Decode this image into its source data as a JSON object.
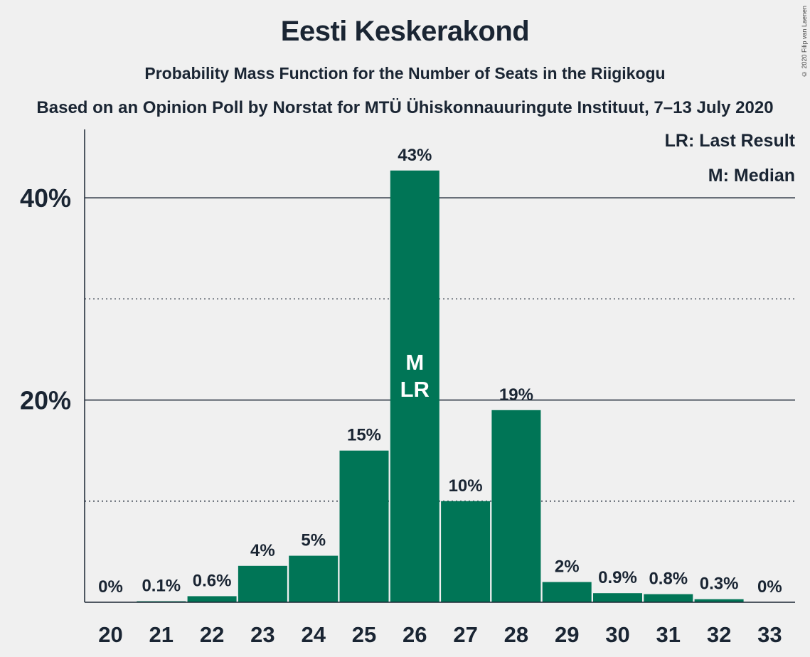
{
  "header": {
    "title": "Eesti Keskerakond",
    "subtitle": "Probability Mass Function for the Number of Seats in the Riigikogu",
    "subtitle2": "Based on an Opinion Poll by Norstat for MTÜ Ühiskonnauuringute Instituut, 7–13 July 2020",
    "copyright": "© 2020 Filip van Laenen"
  },
  "legend": {
    "last_result": "LR: Last Result",
    "median": "M: Median"
  },
  "colors": {
    "bar": "#007556",
    "text": "#1a2533",
    "background": "#f0f0f0"
  },
  "chart_data": {
    "type": "bar",
    "categories": [
      "20",
      "21",
      "22",
      "23",
      "24",
      "25",
      "26",
      "27",
      "28",
      "29",
      "30",
      "31",
      "32",
      "33"
    ],
    "values": [
      0,
      0.1,
      0.6,
      3.6,
      4.6,
      15.0,
      42.7,
      10.0,
      19.0,
      2.0,
      0.9,
      0.8,
      0.3,
      0
    ],
    "labels": [
      "0%",
      "0.1%",
      "0.6%",
      "4%",
      "5%",
      "15%",
      "43%",
      "10%",
      "19%",
      "2%",
      "0.9%",
      "0.8%",
      "0.3%",
      "0%"
    ],
    "ylim": [
      0,
      45
    ],
    "yticks": [
      {
        "value": 20,
        "label": "20%"
      },
      {
        "value": 40,
        "label": "40%"
      }
    ],
    "minor_gridlines": [
      10,
      30
    ],
    "median_category": "26",
    "last_result_category": "26",
    "median_marker": "M",
    "last_result_marker": "LR",
    "legend_position": "top-right"
  }
}
